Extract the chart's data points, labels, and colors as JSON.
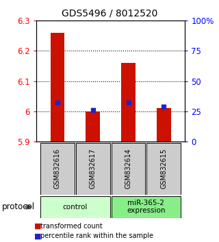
{
  "title": "GDS5496 / 8012520",
  "samples": [
    "GSM832616",
    "GSM832617",
    "GSM832614",
    "GSM832615"
  ],
  "bar_tops": [
    6.26,
    6.0,
    6.16,
    6.01
  ],
  "bar_bottoms": [
    5.9,
    5.9,
    5.9,
    5.9
  ],
  "blue_dots": [
    6.03,
    6.005,
    6.03,
    6.015
  ],
  "bar_color": "#cc1100",
  "dot_color": "#2222cc",
  "ylim": [
    5.9,
    6.3
  ],
  "left_ticks": [
    5.9,
    6.0,
    6.1,
    6.2,
    6.3
  ],
  "left_tick_labels": [
    "5.9",
    "6",
    "6.1",
    "6.2",
    "6.3"
  ],
  "right_ticks": [
    0,
    25,
    50,
    75,
    100
  ],
  "right_tick_labels": [
    "0",
    "25",
    "50",
    "75",
    "100%"
  ],
  "grid_lines": [
    6.0,
    6.1,
    6.2
  ],
  "groups": [
    {
      "label": "control",
      "samples": [
        0,
        1
      ],
      "color": "#ccffcc"
    },
    {
      "label": "miR-365-2\nexpression",
      "samples": [
        2,
        3
      ],
      "color": "#88ee88"
    }
  ],
  "legend_bar_label": "transformed count",
  "legend_dot_label": "percentile rank within the sample",
  "protocol_label": "protocol",
  "bg_color": "#ffffff",
  "sample_box_color": "#cccccc",
  "bar_width": 0.4
}
